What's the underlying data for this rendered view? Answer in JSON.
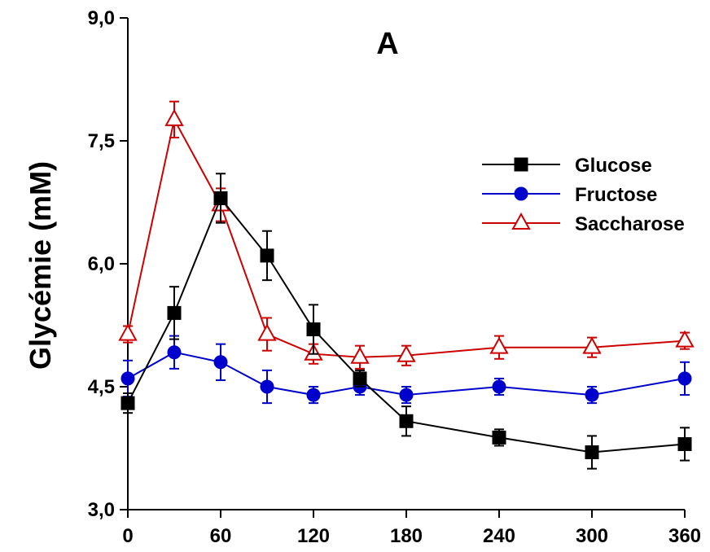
{
  "colors": {
    "Glucose": "#000000",
    "Fructose": "#0000cc",
    "Saccharose": "#cc0000",
    "axis": "#000000"
  },
  "chart_data": {
    "type": "line",
    "title": "A",
    "xlabel": "",
    "ylabel": "Glycémie (mM)",
    "xlim": [
      0,
      360
    ],
    "ylim": [
      3.0,
      9.0
    ],
    "xticks": [
      0,
      60,
      120,
      180,
      240,
      300,
      360
    ],
    "yticks": [
      3.0,
      4.5,
      6.0,
      7.5,
      9.0
    ],
    "ytick_labels": [
      "3,0",
      "4,5",
      "6,0",
      "7,5",
      "9,0"
    ],
    "legend_position": "top-right",
    "series": [
      {
        "name": "Glucose",
        "marker": "filled-square",
        "x": [
          0,
          30,
          60,
          90,
          120,
          150,
          180,
          240,
          300,
          360
        ],
        "y": [
          4.3,
          5.4,
          6.8,
          6.1,
          5.2,
          4.6,
          4.08,
          3.88,
          3.7,
          3.8
        ],
        "err": [
          0.12,
          0.32,
          0.3,
          0.3,
          0.3,
          0.1,
          0.18,
          0.1,
          0.2,
          0.2
        ]
      },
      {
        "name": "Fructose",
        "marker": "filled-circle",
        "x": [
          0,
          30,
          60,
          90,
          120,
          150,
          180,
          240,
          300,
          360
        ],
        "y": [
          4.6,
          4.92,
          4.8,
          4.5,
          4.4,
          4.5,
          4.4,
          4.5,
          4.4,
          4.6
        ],
        "err": [
          0.22,
          0.2,
          0.22,
          0.2,
          0.1,
          0.1,
          0.1,
          0.1,
          0.1,
          0.2
        ]
      },
      {
        "name": "Saccharose",
        "marker": "open-triangle",
        "x": [
          0,
          30,
          60,
          90,
          120,
          150,
          180,
          240,
          300,
          360
        ],
        "y": [
          5.14,
          7.76,
          6.72,
          5.14,
          4.9,
          4.86,
          4.88,
          4.98,
          4.98,
          5.06
        ],
        "err": [
          0.1,
          0.22,
          0.2,
          0.2,
          0.12,
          0.14,
          0.12,
          0.14,
          0.12,
          0.1
        ]
      }
    ]
  }
}
